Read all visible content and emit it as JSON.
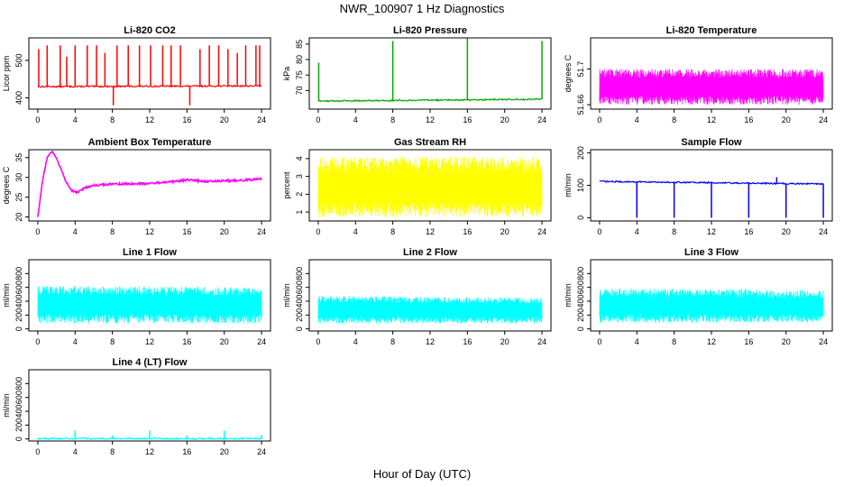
{
  "figure": {
    "title": "NWR_100907  1 Hz Diagnostics",
    "xlabel": "Hour of Day (UTC)"
  },
  "chart_data": [
    {
      "id": "co2",
      "type": "line",
      "title": "Li-820 CO2",
      "ylabel": "Licor ppm",
      "color": "#ff0000",
      "xlim": [
        0,
        24
      ],
      "ylim": [
        370,
        560
      ],
      "xticks": [
        0,
        4,
        8,
        12,
        16,
        20,
        24
      ],
      "yticks": [
        400,
        500
      ],
      "series": [
        {
          "name": "Li-820 CO2",
          "pattern": "baseline_spikes",
          "x": [
            0,
            24
          ],
          "baseline": [
            430,
            432
          ],
          "spike_x": [
            0.1,
            1.0,
            2.4,
            3.1,
            4.0,
            5.3,
            6.3,
            7.2,
            8.1,
            8.5,
            9.7,
            10.9,
            12.1,
            13.4,
            14.3,
            15.3,
            16.3,
            17.4,
            18.4,
            19.4,
            20.4,
            21.4,
            22.3,
            23.4,
            23.8
          ],
          "spike_y": [
            530,
            540,
            540,
            510,
            540,
            540,
            540,
            520,
            380,
            540,
            540,
            540,
            540,
            540,
            540,
            540,
            380,
            530,
            540,
            540,
            530,
            520,
            540,
            540,
            540
          ]
        }
      ]
    },
    {
      "id": "pressure",
      "type": "line",
      "title": "Li-820 Pressure",
      "ylabel": "kPa",
      "color": "#00aa00",
      "xlim": [
        0,
        24
      ],
      "ylim": [
        64,
        87
      ],
      "xticks": [
        0,
        4,
        8,
        12,
        16,
        20,
        24
      ],
      "yticks": [
        70,
        75,
        80,
        85
      ],
      "series": [
        {
          "name": "Li-820 Pressure",
          "pattern": "baseline_spikes",
          "x": [
            0,
            24
          ],
          "baseline": [
            66.6,
            67.2
          ],
          "spike_x": [
            0.05,
            8.0,
            16.0,
            24.0
          ],
          "spike_y": [
            79,
            86,
            87,
            86
          ]
        }
      ]
    },
    {
      "id": "licor_temp",
      "type": "line",
      "title": "Li-820 Temperature",
      "ylabel": "degrees C",
      "color": "#ff00ff",
      "xlim": [
        0,
        24
      ],
      "ylim": [
        51.655,
        51.735
      ],
      "xticks": [
        0,
        4,
        8,
        12,
        16,
        20,
        24
      ],
      "yticks": [
        51.66,
        51.7
      ],
      "series": [
        {
          "name": "Li-820 Temperature",
          "pattern": "dense_band",
          "x": [
            0,
            24
          ],
          "low": [
            51.66,
            51.66
          ],
          "high": [
            51.7,
            51.7
          ]
        }
      ]
    },
    {
      "id": "box_temp",
      "type": "line",
      "title": "Ambient Box Temperature",
      "ylabel": "degrees C",
      "color": "#ff00ff",
      "xlim": [
        0,
        24
      ],
      "ylim": [
        19,
        37
      ],
      "xticks": [
        0,
        4,
        8,
        12,
        16,
        20,
        24
      ],
      "yticks": [
        20,
        25,
        30,
        35
      ],
      "series": [
        {
          "name": "Ambient Box Temperature",
          "pattern": "curve",
          "x": [
            0,
            0.5,
            1,
            1.5,
            2,
            2.5,
            3,
            3.5,
            4,
            4.5,
            5,
            6,
            7,
            8,
            10,
            12,
            14,
            16,
            17,
            18,
            20,
            22,
            24
          ],
          "y": [
            20,
            29,
            35,
            36.5,
            35,
            32,
            29,
            27,
            26.2,
            26.6,
            27.3,
            28,
            28.2,
            28.3,
            28.4,
            28.5,
            28.8,
            29.4,
            29.2,
            29.0,
            29.1,
            29.3,
            29.6
          ]
        }
      ]
    },
    {
      "id": "rh",
      "type": "line",
      "title": "Gas Stream RH",
      "ylabel": "percent",
      "color": "#ffff00",
      "xlim": [
        0,
        24
      ],
      "ylim": [
        0.5,
        4.5
      ],
      "xticks": [
        0,
        4,
        8,
        12,
        16,
        20,
        24
      ],
      "yticks": [
        1,
        2,
        3,
        4
      ],
      "series": [
        {
          "name": "Gas Stream RH",
          "pattern": "dense_band",
          "x": [
            0,
            24
          ],
          "low": [
            0.7,
            0.7
          ],
          "high": [
            4.1,
            4.1
          ]
        }
      ]
    },
    {
      "id": "sample_flow",
      "type": "line",
      "title": "Sample Flow",
      "ylabel": "ml/min",
      "color": "#0000ff",
      "xlim": [
        0,
        24
      ],
      "ylim": [
        -10,
        210
      ],
      "xticks": [
        0,
        4,
        8,
        12,
        16,
        20,
        24
      ],
      "yticks": [
        0,
        100,
        200
      ],
      "series": [
        {
          "name": "Sample Flow",
          "pattern": "baseline_spikes",
          "x": [
            0,
            24
          ],
          "baseline": [
            112,
            104
          ],
          "spike_x": [
            4.0,
            8.0,
            12.0,
            16.0,
            19.0,
            20.0,
            24.0
          ],
          "spike_y": [
            0,
            0,
            0,
            0,
            125,
            0,
            0
          ]
        }
      ]
    },
    {
      "id": "line1",
      "type": "line",
      "title": "Line 1 Flow",
      "ylabel": "ml/min",
      "color": "#00ffff",
      "xlim": [
        0,
        24
      ],
      "ylim": [
        -30,
        1000
      ],
      "xticks": [
        0,
        4,
        8,
        12,
        16,
        20,
        24
      ],
      "yticks": [
        0,
        200,
        400,
        600,
        800
      ],
      "series": [
        {
          "name": "Line 1 Flow",
          "pattern": "dense_band",
          "x": [
            0,
            24
          ],
          "low": [
            80,
            80
          ],
          "high": [
            630,
            600
          ]
        }
      ]
    },
    {
      "id": "line2",
      "type": "line",
      "title": "Line 2 Flow",
      "ylabel": "ml/min",
      "color": "#00ffff",
      "xlim": [
        0,
        24
      ],
      "ylim": [
        -30,
        1000
      ],
      "xticks": [
        0,
        4,
        8,
        12,
        16,
        20,
        24
      ],
      "yticks": [
        0,
        200,
        400,
        600,
        800
      ],
      "series": [
        {
          "name": "Line 2 Flow",
          "pattern": "dense_band",
          "x": [
            0,
            24
          ],
          "low": [
            80,
            80
          ],
          "high": [
            480,
            450
          ]
        }
      ]
    },
    {
      "id": "line3",
      "type": "line",
      "title": "Line 3 Flow",
      "ylabel": "ml/min",
      "color": "#00ffff",
      "xlim": [
        0,
        24
      ],
      "ylim": [
        -30,
        1000
      ],
      "xticks": [
        0,
        4,
        8,
        12,
        16,
        20,
        24
      ],
      "yticks": [
        0,
        200,
        400,
        600,
        800
      ],
      "series": [
        {
          "name": "Line 3 Flow",
          "pattern": "dense_band",
          "x": [
            0,
            24
          ],
          "low": [
            90,
            90
          ],
          "high": [
            590,
            560
          ]
        }
      ]
    },
    {
      "id": "line4",
      "type": "line",
      "title": "Line 4 (LT) Flow",
      "ylabel": "ml/min",
      "color": "#00ffff",
      "xlim": [
        0,
        24
      ],
      "ylim": [
        -30,
        1000
      ],
      "xticks": [
        0,
        4,
        8,
        12,
        16,
        20,
        24
      ],
      "yticks": [
        0,
        200,
        400,
        600,
        800
      ],
      "series": [
        {
          "name": "Line 4 (LT) Flow",
          "pattern": "baseline_spikes",
          "x": [
            0,
            24
          ],
          "baseline": [
            5,
            5
          ],
          "spike_x": [
            4.0,
            8.0,
            12.0,
            16.0,
            20.0,
            24.0
          ],
          "spike_y": [
            120,
            50,
            120,
            50,
            120,
            60
          ]
        }
      ]
    }
  ]
}
